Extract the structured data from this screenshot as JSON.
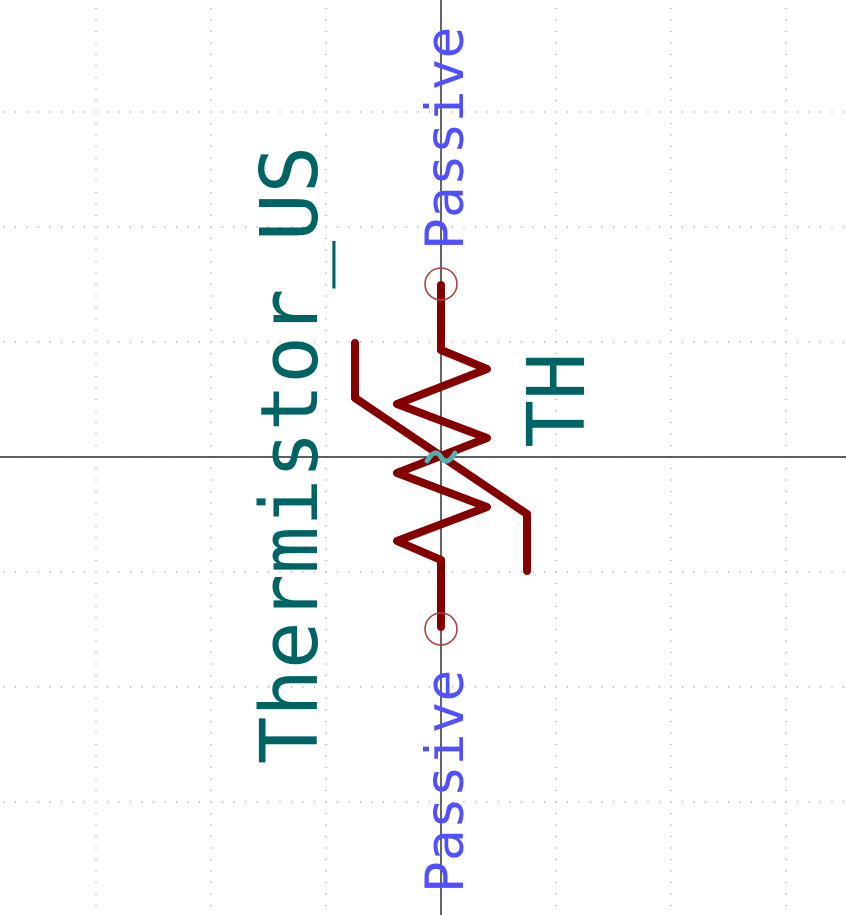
{
  "symbol": {
    "value_name": "Thermistor_US",
    "reference": "TH",
    "pin_top_type": "Passive",
    "pin_bottom_type": "Passive"
  },
  "colors": {
    "background": "#ffffff",
    "grid_dot": "#9a9a9a",
    "axis": "#000000",
    "body": "#840000",
    "field_text": "#006464",
    "pin_type_text": "#5050ff",
    "pin_marker": "#b04040",
    "anchor_marker": "#4fb0b0"
  },
  "icons": {
    "anchor": "anchor-tilde-icon",
    "pin_end": "pin-end-circle-icon"
  }
}
